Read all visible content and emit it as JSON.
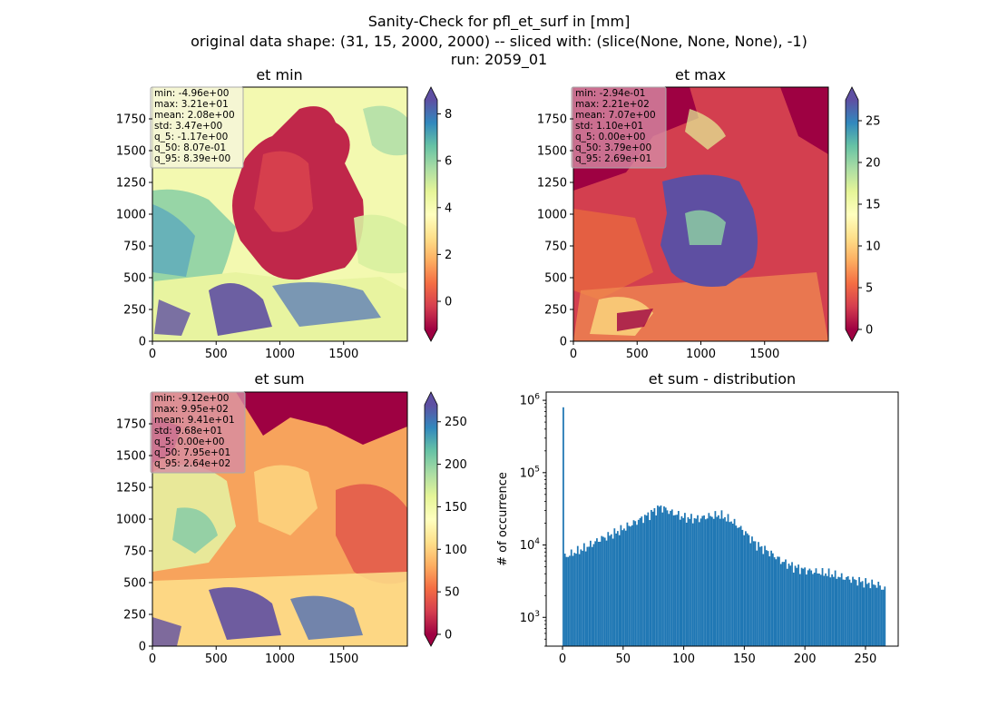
{
  "figure": {
    "title_lines": [
      "Sanity-Check for pfl_et_surf in [mm]",
      "original data shape: (31, 15, 2000, 2000) -- sliced with: (slice(None, None, None), -1)",
      "run: 2059_01"
    ]
  },
  "chart_data": [
    {
      "type": "heatmap",
      "title": "et min",
      "colormap": "Spectral",
      "xlim": [
        0,
        2000
      ],
      "ylim": [
        0,
        2000
      ],
      "xticks": [
        0,
        500,
        1000,
        1500
      ],
      "yticks": [
        0,
        250,
        500,
        750,
        1000,
        1250,
        1500,
        1750
      ],
      "colorbar": {
        "vmin": -1.2,
        "vmax": 8.6,
        "ticks": [
          0,
          2,
          4,
          6,
          8
        ],
        "extend": "both"
      },
      "stats": [
        "min: -4.96e+00",
        "max: 3.21e+01",
        "mean: 2.08e+00",
        "std: 3.47e+00",
        "q_5: -1.17e+00",
        "q_50: 8.07e-01",
        "q_95: 8.39e+00"
      ],
      "stats_box_color": "#f5f5dc"
    },
    {
      "type": "heatmap",
      "title": "et max",
      "colormap": "Spectral",
      "xlim": [
        0,
        2000
      ],
      "ylim": [
        0,
        2000
      ],
      "xticks": [
        0,
        500,
        1000,
        1500
      ],
      "yticks": [
        0,
        250,
        500,
        750,
        1000,
        1250,
        1500,
        1750
      ],
      "colorbar": {
        "vmin": 0,
        "vmax": 27.5,
        "ticks": [
          0,
          5,
          10,
          15,
          20,
          25
        ],
        "extend": "both"
      },
      "stats": [
        "min: -2.94e-01",
        "max: 2.21e+02",
        "mean: 7.07e+00",
        "std: 1.10e+01",
        "q_5: 0.00e+00",
        "q_50: 3.79e+00",
        "q_95: 2.69e+01"
      ],
      "stats_box_color": "#d68ba4"
    },
    {
      "type": "heatmap",
      "title": "et sum",
      "colormap": "Spectral",
      "xlim": [
        0,
        2000
      ],
      "ylim": [
        0,
        2000
      ],
      "xticks": [
        0,
        500,
        1000,
        1500
      ],
      "yticks": [
        0,
        250,
        500,
        750,
        1000,
        1250,
        1500,
        1750
      ],
      "colorbar": {
        "vmin": 0,
        "vmax": 270,
        "ticks": [
          0,
          50,
          100,
          150,
          200,
          250
        ],
        "extend": "both"
      },
      "stats": [
        "min: -9.12e+00",
        "max: 9.95e+02",
        "mean: 9.41e+01",
        "std: 9.68e+01",
        "q_5: 0.00e+00",
        "q_50: 7.95e+01",
        "q_95: 2.64e+02"
      ],
      "stats_box_color": "#d68ba4"
    },
    {
      "type": "bar",
      "title": "et sum - distribution",
      "xlabel": "",
      "ylabel": "# of occurrence",
      "yscale": "log",
      "xlim": [
        -13.5,
        277
      ],
      "ylim": [
        400,
        1300000
      ],
      "xticks": [
        0,
        50,
        100,
        150,
        200,
        250
      ],
      "yticks": [
        {
          "value": 1000,
          "base": "10",
          "exp": "3"
        },
        {
          "value": 10000,
          "base": "10",
          "exp": "4"
        },
        {
          "value": 100000,
          "base": "10",
          "exp": "5"
        },
        {
          "value": 1000000,
          "base": "10",
          "exp": "6"
        }
      ],
      "bar_color": "#1f77b4",
      "series": [
        {
          "x": [
            0,
            10,
            20,
            30,
            40,
            50,
            60,
            70,
            80,
            90,
            100,
            110,
            120,
            130,
            140,
            150,
            160,
            170,
            180,
            190,
            200,
            210,
            220,
            230,
            240,
            250,
            260,
            264
          ],
          "values": [
            800000,
            8000,
            9500,
            12000,
            14000,
            17000,
            21000,
            26000,
            34000,
            28000,
            24000,
            23000,
            25000,
            26000,
            21000,
            15000,
            10000,
            8000,
            6000,
            5000,
            4500,
            4200,
            4000,
            3600,
            3300,
            3000,
            2800,
            2500
          ]
        }
      ]
    }
  ]
}
